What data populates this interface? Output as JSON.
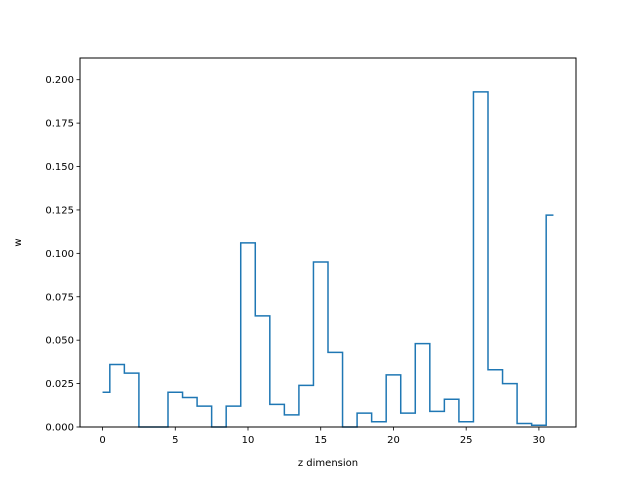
{
  "chart_data": {
    "type": "line",
    "drawstyle": "steps-mid",
    "xlabel": "z dimension",
    "ylabel": "w",
    "xlim": [
      -1.55,
      32.55
    ],
    "ylim": [
      0,
      0.2125
    ],
    "xticks": [
      0,
      5,
      10,
      15,
      20,
      25,
      30
    ],
    "yticks": [
      0.0,
      0.025,
      0.05,
      0.075,
      0.1,
      0.125,
      0.15,
      0.175,
      0.2
    ],
    "ytick_labels": [
      "0.000",
      "0.025",
      "0.050",
      "0.075",
      "0.100",
      "0.125",
      "0.150",
      "0.175",
      "0.200"
    ],
    "grid": false,
    "line_color": "#1f77b4",
    "series": [
      {
        "x": [
          0,
          1,
          2,
          3,
          4,
          5,
          6,
          7,
          8,
          9,
          10,
          11,
          12,
          13,
          14,
          15,
          16,
          17,
          18,
          19,
          20,
          21,
          22,
          23,
          24,
          25,
          26,
          27,
          28,
          29,
          30,
          31
        ],
        "values": [
          0.02,
          0.036,
          0.031,
          0.0,
          0.0,
          0.02,
          0.017,
          0.012,
          0.0,
          0.012,
          0.106,
          0.064,
          0.013,
          0.007,
          0.024,
          0.095,
          0.043,
          0.0,
          0.008,
          0.003,
          0.03,
          0.008,
          0.048,
          0.009,
          0.016,
          0.003,
          0.193,
          0.033,
          0.025,
          0.002,
          0.001,
          0.122
        ]
      }
    ]
  }
}
